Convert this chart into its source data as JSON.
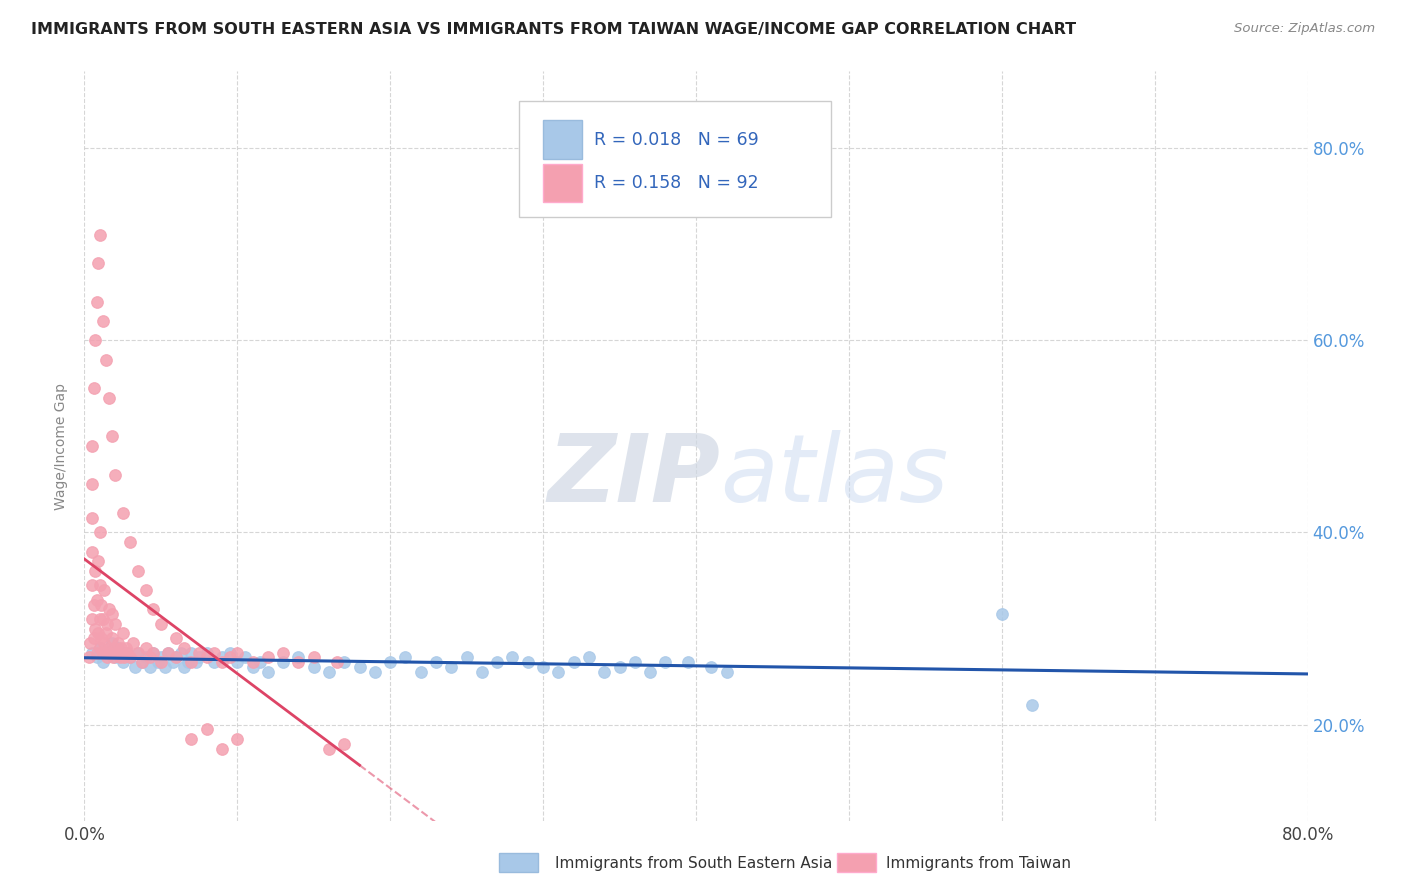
{
  "title": "IMMIGRANTS FROM SOUTH EASTERN ASIA VS IMMIGRANTS FROM TAIWAN WAGE/INCOME GAP CORRELATION CHART",
  "source": "Source: ZipAtlas.com",
  "xlabel_blue": "Immigrants from South Eastern Asia",
  "xlabel_pink": "Immigrants from Taiwan",
  "ylabel": "Wage/Income Gap",
  "watermark_zip": "ZIP",
  "watermark_atlas": "atlas",
  "R_blue": 0.018,
  "N_blue": 69,
  "R_pink": 0.158,
  "N_pink": 92,
  "xlim": [
    0.0,
    0.8
  ],
  "ylim": [
    0.1,
    0.88
  ],
  "blue_scatter_color": "#A8C8E8",
  "pink_scatter_color": "#F4A0B0",
  "trend_blue_color": "#2255AA",
  "trend_pink_color": "#DD4466",
  "blue_dots_x": [
    0.005,
    0.008,
    0.01,
    0.012,
    0.015,
    0.018,
    0.02,
    0.022,
    0.025,
    0.028,
    0.03,
    0.033,
    0.035,
    0.038,
    0.04,
    0.043,
    0.045,
    0.048,
    0.05,
    0.053,
    0.055,
    0.058,
    0.06,
    0.063,
    0.065,
    0.068,
    0.07,
    0.073,
    0.075,
    0.08,
    0.085,
    0.09,
    0.095,
    0.1,
    0.105,
    0.11,
    0.115,
    0.12,
    0.13,
    0.14,
    0.15,
    0.16,
    0.17,
    0.18,
    0.19,
    0.2,
    0.21,
    0.22,
    0.23,
    0.24,
    0.25,
    0.26,
    0.27,
    0.28,
    0.29,
    0.3,
    0.31,
    0.32,
    0.33,
    0.34,
    0.35,
    0.36,
    0.37,
    0.38,
    0.395,
    0.41,
    0.42,
    0.6,
    0.62
  ],
  "blue_dots_y": [
    0.275,
    0.27,
    0.28,
    0.265,
    0.275,
    0.285,
    0.27,
    0.28,
    0.265,
    0.275,
    0.27,
    0.26,
    0.275,
    0.265,
    0.27,
    0.26,
    0.275,
    0.265,
    0.27,
    0.26,
    0.275,
    0.265,
    0.27,
    0.275,
    0.26,
    0.265,
    0.275,
    0.265,
    0.27,
    0.275,
    0.265,
    0.27,
    0.275,
    0.265,
    0.27,
    0.26,
    0.265,
    0.255,
    0.265,
    0.27,
    0.26,
    0.255,
    0.265,
    0.26,
    0.255,
    0.265,
    0.27,
    0.255,
    0.265,
    0.26,
    0.27,
    0.255,
    0.265,
    0.27,
    0.265,
    0.26,
    0.255,
    0.265,
    0.27,
    0.255,
    0.26,
    0.265,
    0.255,
    0.265,
    0.265,
    0.26,
    0.255,
    0.315,
    0.22
  ],
  "pink_dots_x": [
    0.003,
    0.004,
    0.005,
    0.005,
    0.005,
    0.005,
    0.005,
    0.006,
    0.006,
    0.007,
    0.007,
    0.008,
    0.008,
    0.009,
    0.009,
    0.01,
    0.01,
    0.01,
    0.01,
    0.011,
    0.011,
    0.012,
    0.012,
    0.013,
    0.013,
    0.014,
    0.015,
    0.015,
    0.016,
    0.016,
    0.017,
    0.018,
    0.018,
    0.019,
    0.02,
    0.02,
    0.021,
    0.022,
    0.023,
    0.024,
    0.025,
    0.026,
    0.027,
    0.028,
    0.03,
    0.032,
    0.035,
    0.038,
    0.04,
    0.043,
    0.045,
    0.05,
    0.055,
    0.06,
    0.065,
    0.07,
    0.075,
    0.08,
    0.085,
    0.09,
    0.095,
    0.1,
    0.11,
    0.12,
    0.13,
    0.14,
    0.15,
    0.16,
    0.165,
    0.17,
    0.005,
    0.006,
    0.007,
    0.008,
    0.009,
    0.01,
    0.012,
    0.014,
    0.016,
    0.018,
    0.02,
    0.025,
    0.03,
    0.035,
    0.04,
    0.045,
    0.05,
    0.06,
    0.07,
    0.08,
    0.09,
    0.1
  ],
  "pink_dots_y": [
    0.27,
    0.285,
    0.31,
    0.345,
    0.38,
    0.415,
    0.45,
    0.29,
    0.325,
    0.3,
    0.36,
    0.275,
    0.33,
    0.295,
    0.37,
    0.28,
    0.31,
    0.345,
    0.4,
    0.29,
    0.325,
    0.275,
    0.31,
    0.285,
    0.34,
    0.295,
    0.27,
    0.305,
    0.28,
    0.32,
    0.275,
    0.29,
    0.315,
    0.27,
    0.28,
    0.305,
    0.275,
    0.285,
    0.27,
    0.28,
    0.295,
    0.27,
    0.28,
    0.275,
    0.27,
    0.285,
    0.275,
    0.265,
    0.28,
    0.27,
    0.275,
    0.265,
    0.275,
    0.27,
    0.28,
    0.265,
    0.275,
    0.27,
    0.275,
    0.265,
    0.27,
    0.275,
    0.265,
    0.27,
    0.275,
    0.265,
    0.27,
    0.175,
    0.265,
    0.18,
    0.49,
    0.55,
    0.6,
    0.64,
    0.68,
    0.71,
    0.62,
    0.58,
    0.54,
    0.5,
    0.46,
    0.42,
    0.39,
    0.36,
    0.34,
    0.32,
    0.305,
    0.29,
    0.185,
    0.195,
    0.175,
    0.185
  ]
}
